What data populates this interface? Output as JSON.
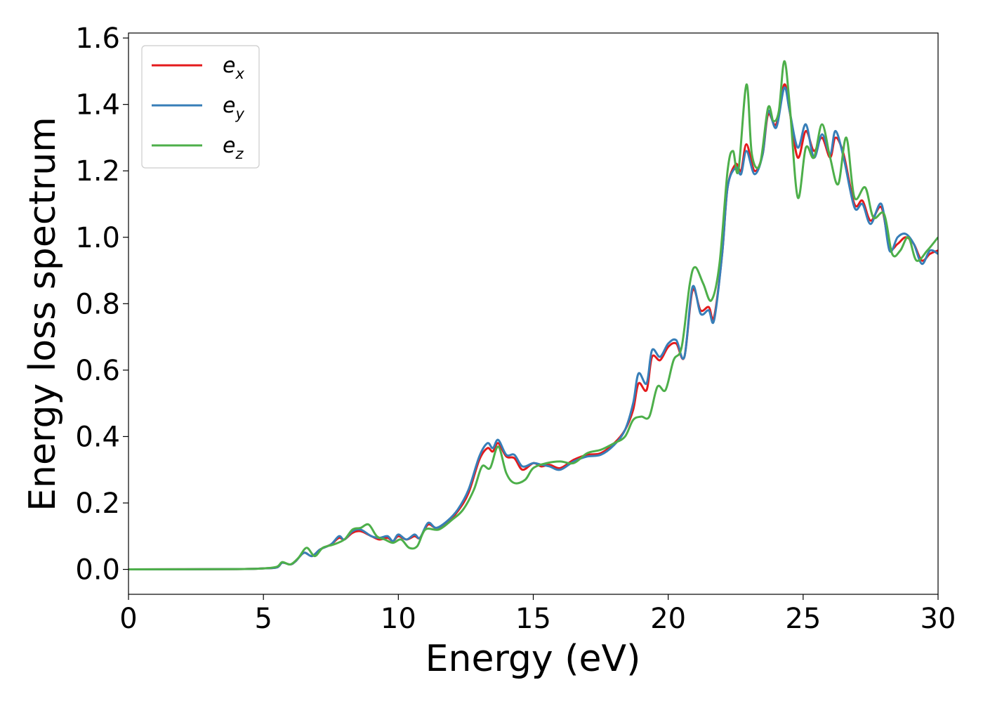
{
  "chart_data": {
    "type": "line",
    "xlabel": "Energy (eV)",
    "ylabel": "Energy loss spectrum",
    "xlim": [
      0,
      30
    ],
    "ylim": [
      -0.075,
      1.615
    ],
    "x_ticks": [
      0,
      5,
      10,
      15,
      20,
      25,
      30
    ],
    "x_tick_labels": [
      "0",
      "5",
      "10",
      "15",
      "20",
      "25",
      "30"
    ],
    "y_ticks": [
      0.0,
      0.2,
      0.4,
      0.6,
      0.8,
      1.0,
      1.2,
      1.4,
      1.6
    ],
    "y_tick_labels": [
      "0.0",
      "0.2",
      "0.4",
      "0.6",
      "0.8",
      "1.0",
      "1.2",
      "1.4",
      "1.6"
    ],
    "grid": false,
    "legend_position": "top-left",
    "series": [
      {
        "name": "e_x",
        "label_base": "e",
        "label_sub": "x",
        "color": "#e41a1c",
        "points": [
          [
            0,
            0.0
          ],
          [
            4,
            0.001
          ],
          [
            5,
            0.003
          ],
          [
            5.5,
            0.006
          ],
          [
            5.7,
            0.02
          ],
          [
            6.0,
            0.015
          ],
          [
            6.2,
            0.025
          ],
          [
            6.5,
            0.05
          ],
          [
            6.8,
            0.04
          ],
          [
            7.1,
            0.06
          ],
          [
            7.5,
            0.075
          ],
          [
            7.8,
            0.095
          ],
          [
            8.0,
            0.09
          ],
          [
            8.3,
            0.11
          ],
          [
            8.6,
            0.115
          ],
          [
            9.0,
            0.1
          ],
          [
            9.3,
            0.09
          ],
          [
            9.6,
            0.095
          ],
          [
            9.8,
            0.085
          ],
          [
            10.0,
            0.1
          ],
          [
            10.3,
            0.09
          ],
          [
            10.6,
            0.1
          ],
          [
            10.8,
            0.095
          ],
          [
            11.1,
            0.135
          ],
          [
            11.4,
            0.125
          ],
          [
            11.8,
            0.14
          ],
          [
            12.2,
            0.175
          ],
          [
            12.6,
            0.23
          ],
          [
            13.0,
            0.33
          ],
          [
            13.3,
            0.365
          ],
          [
            13.5,
            0.355
          ],
          [
            13.7,
            0.38
          ],
          [
            14.0,
            0.34
          ],
          [
            14.3,
            0.335
          ],
          [
            14.6,
            0.3
          ],
          [
            15.0,
            0.32
          ],
          [
            15.3,
            0.31
          ],
          [
            15.6,
            0.315
          ],
          [
            16.0,
            0.305
          ],
          [
            16.5,
            0.33
          ],
          [
            17.0,
            0.345
          ],
          [
            17.5,
            0.35
          ],
          [
            18.0,
            0.38
          ],
          [
            18.4,
            0.42
          ],
          [
            18.7,
            0.48
          ],
          [
            18.9,
            0.56
          ],
          [
            19.2,
            0.54
          ],
          [
            19.4,
            0.64
          ],
          [
            19.7,
            0.63
          ],
          [
            20.0,
            0.67
          ],
          [
            20.3,
            0.68
          ],
          [
            20.6,
            0.64
          ],
          [
            20.9,
            0.84
          ],
          [
            21.2,
            0.78
          ],
          [
            21.5,
            0.79
          ],
          [
            21.7,
            0.76
          ],
          [
            22.0,
            0.95
          ],
          [
            22.2,
            1.15
          ],
          [
            22.5,
            1.22
          ],
          [
            22.7,
            1.2
          ],
          [
            22.9,
            1.28
          ],
          [
            23.2,
            1.2
          ],
          [
            23.5,
            1.25
          ],
          [
            23.7,
            1.37
          ],
          [
            24.0,
            1.34
          ],
          [
            24.3,
            1.46
          ],
          [
            24.5,
            1.38
          ],
          [
            24.8,
            1.24
          ],
          [
            25.1,
            1.32
          ],
          [
            25.4,
            1.26
          ],
          [
            25.7,
            1.3
          ],
          [
            26.0,
            1.24
          ],
          [
            26.2,
            1.3
          ],
          [
            26.5,
            1.25
          ],
          [
            26.9,
            1.1
          ],
          [
            27.2,
            1.11
          ],
          [
            27.5,
            1.05
          ],
          [
            27.9,
            1.09
          ],
          [
            28.2,
            0.97
          ],
          [
            28.5,
            0.98
          ],
          [
            28.8,
            1.0
          ],
          [
            29.1,
            0.98
          ],
          [
            29.4,
            0.93
          ],
          [
            29.7,
            0.95
          ],
          [
            30.0,
            0.96
          ]
        ]
      },
      {
        "name": "e_y",
        "label_base": "e",
        "label_sub": "y",
        "color": "#377eb8",
        "points": [
          [
            0,
            0.0
          ],
          [
            4,
            0.001
          ],
          [
            5,
            0.003
          ],
          [
            5.5,
            0.006
          ],
          [
            5.7,
            0.02
          ],
          [
            6.0,
            0.015
          ],
          [
            6.2,
            0.025
          ],
          [
            6.5,
            0.05
          ],
          [
            6.8,
            0.04
          ],
          [
            7.1,
            0.06
          ],
          [
            7.5,
            0.075
          ],
          [
            7.8,
            0.1
          ],
          [
            8.0,
            0.09
          ],
          [
            8.3,
            0.115
          ],
          [
            8.6,
            0.12
          ],
          [
            9.0,
            0.1
          ],
          [
            9.3,
            0.095
          ],
          [
            9.6,
            0.1
          ],
          [
            9.8,
            0.085
          ],
          [
            10.0,
            0.105
          ],
          [
            10.3,
            0.09
          ],
          [
            10.6,
            0.105
          ],
          [
            10.8,
            0.095
          ],
          [
            11.1,
            0.14
          ],
          [
            11.4,
            0.125
          ],
          [
            11.8,
            0.145
          ],
          [
            12.2,
            0.18
          ],
          [
            12.6,
            0.24
          ],
          [
            13.0,
            0.34
          ],
          [
            13.3,
            0.38
          ],
          [
            13.5,
            0.365
          ],
          [
            13.7,
            0.39
          ],
          [
            14.0,
            0.345
          ],
          [
            14.3,
            0.345
          ],
          [
            14.6,
            0.31
          ],
          [
            15.0,
            0.32
          ],
          [
            15.3,
            0.315
          ],
          [
            15.6,
            0.31
          ],
          [
            16.0,
            0.3
          ],
          [
            16.5,
            0.325
          ],
          [
            17.0,
            0.34
          ],
          [
            17.5,
            0.345
          ],
          [
            18.0,
            0.375
          ],
          [
            18.4,
            0.42
          ],
          [
            18.7,
            0.5
          ],
          [
            18.9,
            0.59
          ],
          [
            19.2,
            0.56
          ],
          [
            19.4,
            0.66
          ],
          [
            19.7,
            0.64
          ],
          [
            20.0,
            0.68
          ],
          [
            20.3,
            0.69
          ],
          [
            20.6,
            0.64
          ],
          [
            20.9,
            0.85
          ],
          [
            21.2,
            0.77
          ],
          [
            21.5,
            0.78
          ],
          [
            21.7,
            0.75
          ],
          [
            22.0,
            0.95
          ],
          [
            22.2,
            1.15
          ],
          [
            22.5,
            1.21
          ],
          [
            22.7,
            1.19
          ],
          [
            22.9,
            1.26
          ],
          [
            23.2,
            1.19
          ],
          [
            23.5,
            1.25
          ],
          [
            23.7,
            1.38
          ],
          [
            24.0,
            1.33
          ],
          [
            24.3,
            1.45
          ],
          [
            24.5,
            1.38
          ],
          [
            24.8,
            1.27
          ],
          [
            25.1,
            1.34
          ],
          [
            25.4,
            1.24
          ],
          [
            25.7,
            1.31
          ],
          [
            26.0,
            1.25
          ],
          [
            26.2,
            1.32
          ],
          [
            26.5,
            1.24
          ],
          [
            26.9,
            1.09
          ],
          [
            27.2,
            1.1
          ],
          [
            27.5,
            1.04
          ],
          [
            27.9,
            1.1
          ],
          [
            28.2,
            0.96
          ],
          [
            28.5,
            1.0
          ],
          [
            28.8,
            1.01
          ],
          [
            29.1,
            0.98
          ],
          [
            29.4,
            0.92
          ],
          [
            29.7,
            0.96
          ],
          [
            30.0,
            0.95
          ]
        ]
      },
      {
        "name": "e_z",
        "label_base": "e",
        "label_sub": "z",
        "color": "#4daf4a",
        "points": [
          [
            0,
            0.0
          ],
          [
            4,
            0.001
          ],
          [
            5,
            0.003
          ],
          [
            5.5,
            0.008
          ],
          [
            5.7,
            0.022
          ],
          [
            6.0,
            0.015
          ],
          [
            6.3,
            0.035
          ],
          [
            6.6,
            0.065
          ],
          [
            6.9,
            0.04
          ],
          [
            7.2,
            0.065
          ],
          [
            7.6,
            0.075
          ],
          [
            8.0,
            0.09
          ],
          [
            8.3,
            0.12
          ],
          [
            8.6,
            0.125
          ],
          [
            8.9,
            0.135
          ],
          [
            9.2,
            0.1
          ],
          [
            9.5,
            0.09
          ],
          [
            9.8,
            0.08
          ],
          [
            10.1,
            0.09
          ],
          [
            10.4,
            0.065
          ],
          [
            10.7,
            0.07
          ],
          [
            11.0,
            0.12
          ],
          [
            11.5,
            0.12
          ],
          [
            12.0,
            0.15
          ],
          [
            12.4,
            0.18
          ],
          [
            12.8,
            0.24
          ],
          [
            13.1,
            0.31
          ],
          [
            13.4,
            0.305
          ],
          [
            13.7,
            0.37
          ],
          [
            14.0,
            0.29
          ],
          [
            14.3,
            0.26
          ],
          [
            14.7,
            0.27
          ],
          [
            15.0,
            0.305
          ],
          [
            15.5,
            0.32
          ],
          [
            16.0,
            0.325
          ],
          [
            16.5,
            0.32
          ],
          [
            17.0,
            0.35
          ],
          [
            17.5,
            0.36
          ],
          [
            18.0,
            0.38
          ],
          [
            18.4,
            0.4
          ],
          [
            18.7,
            0.45
          ],
          [
            19.0,
            0.46
          ],
          [
            19.3,
            0.46
          ],
          [
            19.6,
            0.55
          ],
          [
            19.9,
            0.54
          ],
          [
            20.2,
            0.63
          ],
          [
            20.5,
            0.67
          ],
          [
            20.8,
            0.86
          ],
          [
            21.0,
            0.91
          ],
          [
            21.3,
            0.86
          ],
          [
            21.6,
            0.81
          ],
          [
            21.9,
            0.92
          ],
          [
            22.2,
            1.2
          ],
          [
            22.4,
            1.26
          ],
          [
            22.6,
            1.2
          ],
          [
            22.9,
            1.46
          ],
          [
            23.1,
            1.25
          ],
          [
            23.4,
            1.22
          ],
          [
            23.7,
            1.39
          ],
          [
            23.9,
            1.35
          ],
          [
            24.1,
            1.38
          ],
          [
            24.3,
            1.53
          ],
          [
            24.5,
            1.4
          ],
          [
            24.8,
            1.12
          ],
          [
            25.1,
            1.27
          ],
          [
            25.4,
            1.24
          ],
          [
            25.7,
            1.34
          ],
          [
            26.0,
            1.24
          ],
          [
            26.3,
            1.16
          ],
          [
            26.6,
            1.3
          ],
          [
            26.9,
            1.12
          ],
          [
            27.3,
            1.15
          ],
          [
            27.6,
            1.06
          ],
          [
            28.0,
            1.07
          ],
          [
            28.3,
            0.95
          ],
          [
            28.6,
            0.96
          ],
          [
            28.9,
            1.0
          ],
          [
            29.2,
            0.93
          ],
          [
            29.6,
            0.96
          ],
          [
            30.0,
            1.0
          ]
        ]
      }
    ]
  }
}
